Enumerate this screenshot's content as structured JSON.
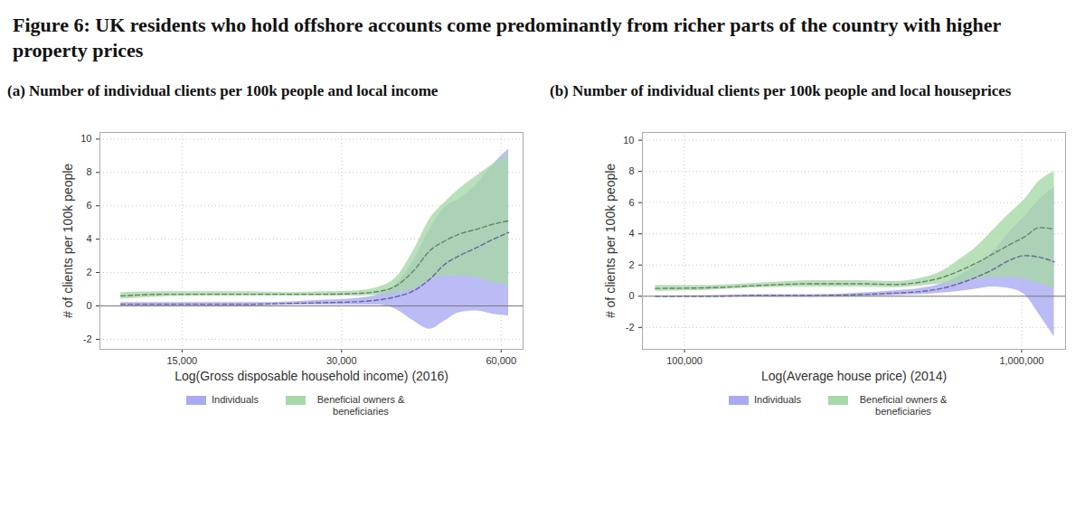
{
  "title": "Figure 6: UK residents who hold offshore accounts come predominantly from richer parts of the country with higher property prices",
  "chart_data": [
    {
      "type": "line",
      "title": "(a) Number of individual clients per 100k people and local income",
      "x_label": "Log(Gross disposable household income) (2016)",
      "y_label": "# of clients per 100k people",
      "log": "x",
      "grid": true,
      "legend": "bottom",
      "baseline": 0,
      "xlim": [
        10500,
        66000
      ],
      "xticks": [
        {
          "value": 15000,
          "label": "15,000"
        },
        {
          "value": 30000,
          "label": "30,000"
        },
        {
          "value": 60000,
          "label": "60,000"
        }
      ],
      "ylim": [
        -2.6,
        10.4
      ],
      "yticks": [
        -2,
        0,
        2,
        4,
        6,
        8,
        10
      ],
      "x": [
        11500,
        14000,
        17000,
        20000,
        24000,
        28000,
        32000,
        35000,
        38000,
        41000,
        44000,
        47000,
        50000,
        54000,
        58000,
        62000
      ],
      "series": [
        {
          "name": "Individuals",
          "color": "#aaaaf2",
          "line_style": "dashed",
          "values": [
            0.1,
            0.1,
            0.1,
            0.1,
            0.15,
            0.2,
            0.25,
            0.35,
            0.55,
            0.9,
            1.6,
            2.5,
            3.0,
            3.5,
            4.0,
            4.4
          ],
          "lower": [
            0.0,
            0.0,
            0.0,
            0.0,
            0.05,
            0.05,
            0.05,
            0.05,
            -0.2,
            -0.9,
            -1.4,
            -0.9,
            -0.4,
            -0.3,
            -0.5,
            -0.6
          ],
          "upper": [
            0.2,
            0.2,
            0.2,
            0.2,
            0.25,
            0.35,
            0.45,
            0.65,
            1.3,
            2.7,
            4.6,
            5.9,
            6.4,
            7.3,
            8.5,
            9.4
          ]
        },
        {
          "name": "Beneficial owners & beneficiaries",
          "color": "#a8d8a8",
          "line_style": "dashed",
          "values": [
            0.6,
            0.7,
            0.7,
            0.7,
            0.7,
            0.7,
            0.75,
            0.85,
            1.2,
            2.1,
            3.3,
            3.9,
            4.3,
            4.6,
            4.9,
            5.1
          ],
          "lower": [
            0.4,
            0.55,
            0.6,
            0.6,
            0.6,
            0.6,
            0.6,
            0.65,
            0.8,
            1.0,
            1.6,
            1.8,
            1.8,
            1.7,
            1.4,
            1.2
          ],
          "upper": [
            0.8,
            0.85,
            0.85,
            0.85,
            0.8,
            0.85,
            0.9,
            1.1,
            1.7,
            3.3,
            5.2,
            6.2,
            7.0,
            7.8,
            8.5,
            9.1
          ]
        }
      ]
    },
    {
      "type": "line",
      "title": "(b) Number of individual clients per 100k people and local houseprices",
      "x_label": "Log(Average house price) (2014)",
      "y_label": "# of clients per 100k people",
      "log": "x",
      "grid": true,
      "legend": "bottom",
      "baseline": 0,
      "xlim": [
        75000,
        1350000
      ],
      "xticks": [
        {
          "value": 100000,
          "label": "100,000"
        },
        {
          "value": 1000000,
          "label": "1,000,000"
        }
      ],
      "ylim": [
        -3.4,
        10.5
      ],
      "yticks": [
        -2,
        0,
        2,
        4,
        6,
        8,
        10
      ],
      "x": [
        82000,
        120000,
        170000,
        240000,
        330000,
        420000,
        500000,
        580000,
        650000,
        730000,
        820000,
        920000,
        1020000,
        1130000,
        1250000
      ],
      "series": [
        {
          "name": "Individuals",
          "color": "#aaaaf2",
          "line_style": "dashed",
          "values": [
            0.0,
            0.0,
            0.05,
            0.05,
            0.1,
            0.2,
            0.3,
            0.5,
            0.8,
            1.2,
            1.7,
            2.3,
            2.6,
            2.5,
            2.2
          ],
          "lower": [
            0.0,
            0.0,
            0.0,
            0.0,
            0.0,
            0.05,
            0.1,
            0.2,
            0.3,
            0.45,
            0.6,
            0.5,
            0.1,
            -1.2,
            -2.6
          ],
          "upper": [
            0.0,
            0.05,
            0.1,
            0.1,
            0.2,
            0.35,
            0.5,
            0.8,
            1.3,
            1.95,
            2.8,
            4.1,
            5.1,
            6.2,
            7.0
          ]
        },
        {
          "name": "Beneficial owners & beneficiaries",
          "color": "#a8d8a8",
          "line_style": "dashed",
          "values": [
            0.5,
            0.55,
            0.7,
            0.8,
            0.8,
            0.75,
            0.9,
            1.2,
            1.6,
            2.1,
            2.7,
            3.3,
            3.8,
            4.4,
            4.3
          ],
          "lower": [
            0.3,
            0.4,
            0.55,
            0.6,
            0.6,
            0.55,
            0.65,
            0.8,
            0.9,
            1.1,
            1.2,
            1.2,
            1.1,
            0.8,
            0.5
          ],
          "upper": [
            0.7,
            0.7,
            0.85,
            1.0,
            1.0,
            0.95,
            1.15,
            1.6,
            2.3,
            3.1,
            4.2,
            5.3,
            6.2,
            7.4,
            8.0
          ]
        }
      ]
    }
  ]
}
